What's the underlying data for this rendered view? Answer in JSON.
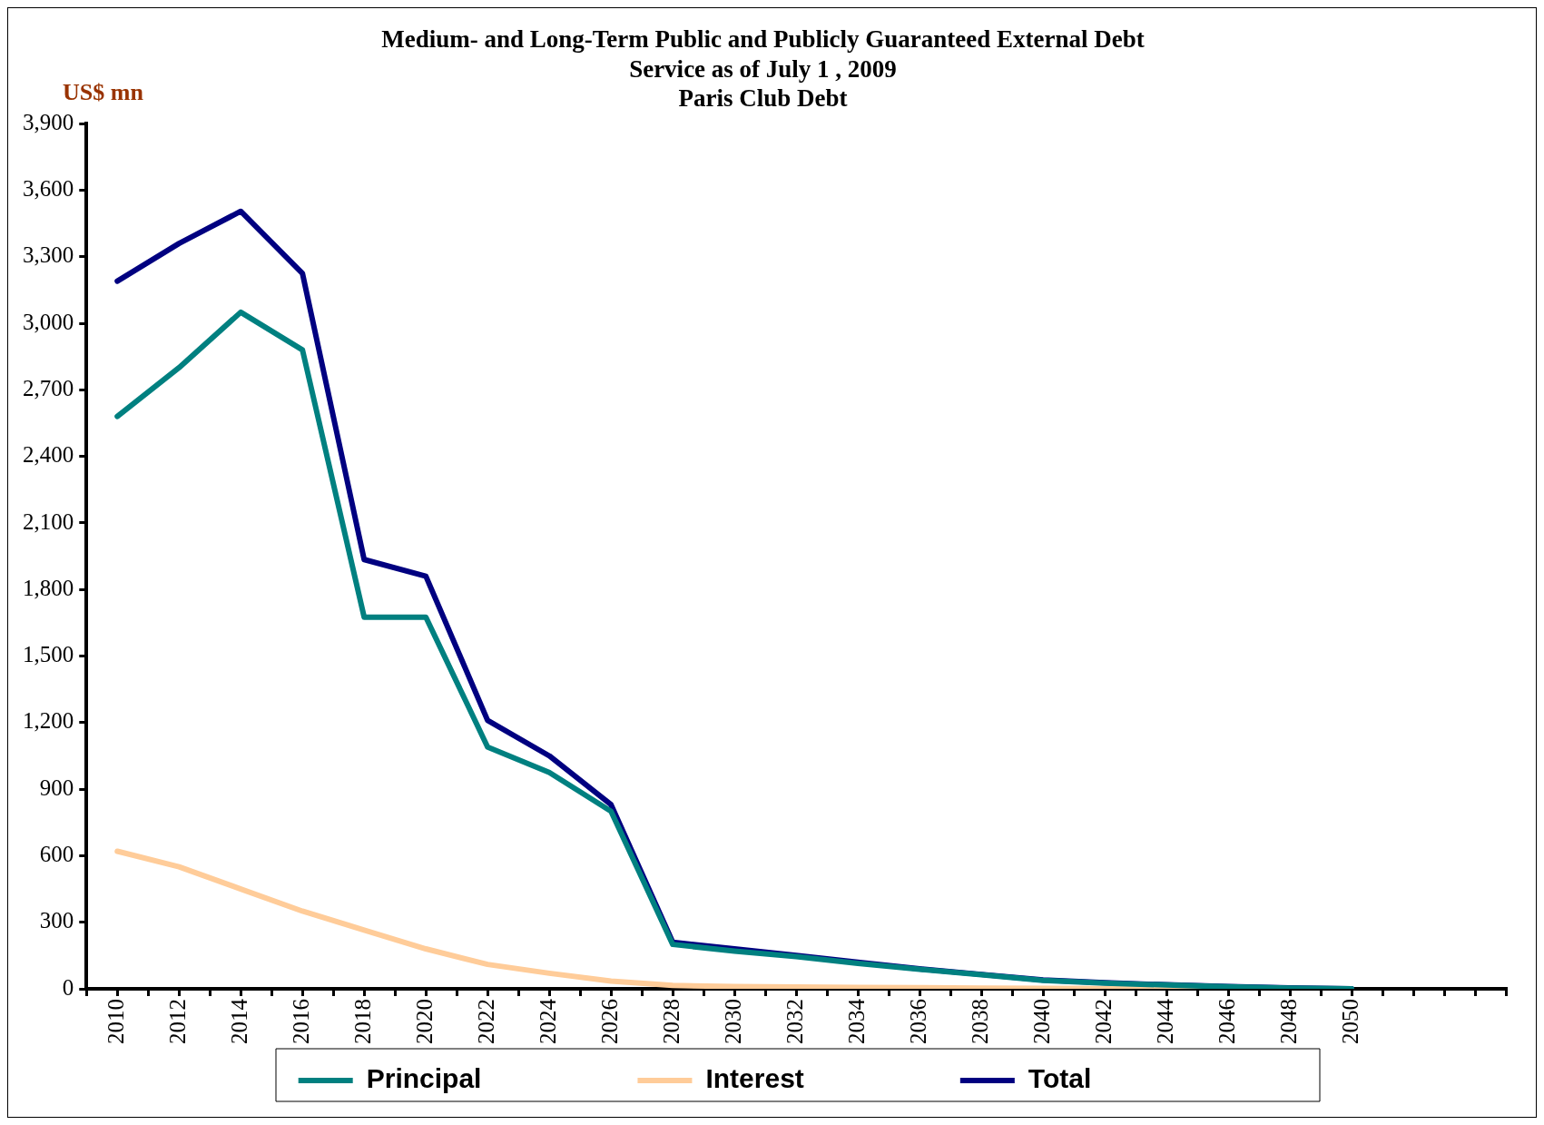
{
  "chart_data": {
    "type": "line",
    "title": "Medium- and Long-Term Public and Publicly Guaranteed External Debt\nService as of July 1 , 2009\nParis Club Debt",
    "ylabel": "US$ mn",
    "x": [
      2010,
      2012,
      2014,
      2016,
      2018,
      2020,
      2022,
      2024,
      2026,
      2028,
      2030,
      2032,
      2034,
      2036,
      2038,
      2040,
      2042,
      2044,
      2046,
      2048,
      2050
    ],
    "series": [
      {
        "name": "Principal",
        "color": "#008080",
        "values": [
          2580,
          2800,
          3050,
          2880,
          1675,
          1675,
          1090,
          975,
          800,
          200,
          170,
          145,
          115,
          88,
          63,
          38,
          26,
          17,
          9,
          3,
          0
        ]
      },
      {
        "name": "Interest",
        "color": "#ffcc99",
        "values": [
          620,
          550,
          450,
          350,
          265,
          180,
          110,
          70,
          35,
          15,
          10,
          8,
          6,
          5,
          3,
          2,
          1,
          1,
          0,
          null,
          null
        ]
      },
      {
        "name": "Total",
        "color": "#000080",
        "values": [
          3190,
          3360,
          3505,
          3225,
          1935,
          1860,
          1210,
          1050,
          830,
          210,
          180,
          150,
          120,
          90,
          65,
          40,
          28,
          18,
          10,
          4,
          0
        ]
      }
    ],
    "xlim": [
      2009,
      2055
    ],
    "xticks": [
      {
        "value": 2009,
        "label": null
      },
      2010,
      {
        "value": 2011,
        "label": null
      },
      2012,
      {
        "value": 2013,
        "label": null
      },
      2014,
      {
        "value": 2015,
        "label": null
      },
      2016,
      {
        "value": 2017,
        "label": null
      },
      2018,
      {
        "value": 2019,
        "label": null
      },
      2020,
      {
        "value": 2021,
        "label": null
      },
      2022,
      {
        "value": 2023,
        "label": null
      },
      2024,
      {
        "value": 2025,
        "label": null
      },
      2026,
      {
        "value": 2027,
        "label": null
      },
      2028,
      {
        "value": 2029,
        "label": null
      },
      2030,
      {
        "value": 2031,
        "label": null
      },
      2032,
      {
        "value": 2033,
        "label": null
      },
      2034,
      {
        "value": 2035,
        "label": null
      },
      2036,
      {
        "value": 2037,
        "label": null
      },
      2038,
      {
        "value": 2039,
        "label": null
      },
      2040,
      {
        "value": 2041,
        "label": null
      },
      2042,
      {
        "value": 2043,
        "label": null
      },
      2044,
      {
        "value": 2045,
        "label": null
      },
      2046,
      {
        "value": 2047,
        "label": null
      },
      2048,
      {
        "value": 2049,
        "label": null
      },
      2050,
      {
        "value": 2051,
        "label": null
      },
      {
        "value": 2052,
        "label": null
      },
      {
        "value": 2053,
        "label": null
      },
      {
        "value": 2054,
        "label": null
      },
      {
        "value": 2055,
        "label": null
      }
    ],
    "ylim": [
      0,
      3900
    ],
    "yticks": [
      0,
      300,
      600,
      900,
      {
        "value": 1200,
        "label": "1,200"
      },
      {
        "value": 1500,
        "label": "1,500"
      },
      {
        "value": 1800,
        "label": "1,800"
      },
      {
        "value": 2100,
        "label": "2,100"
      },
      {
        "value": 2400,
        "label": "2,400"
      },
      {
        "value": 2700,
        "label": "2,700"
      },
      {
        "value": 3000,
        "label": "3,000"
      },
      {
        "value": 3300,
        "label": "3,300"
      },
      {
        "value": 3600,
        "label": "3,600"
      },
      {
        "value": 3900,
        "label": "3,900"
      }
    ],
    "grid": false,
    "legend": "bottom",
    "marker": "none",
    "line_style": "solid"
  }
}
